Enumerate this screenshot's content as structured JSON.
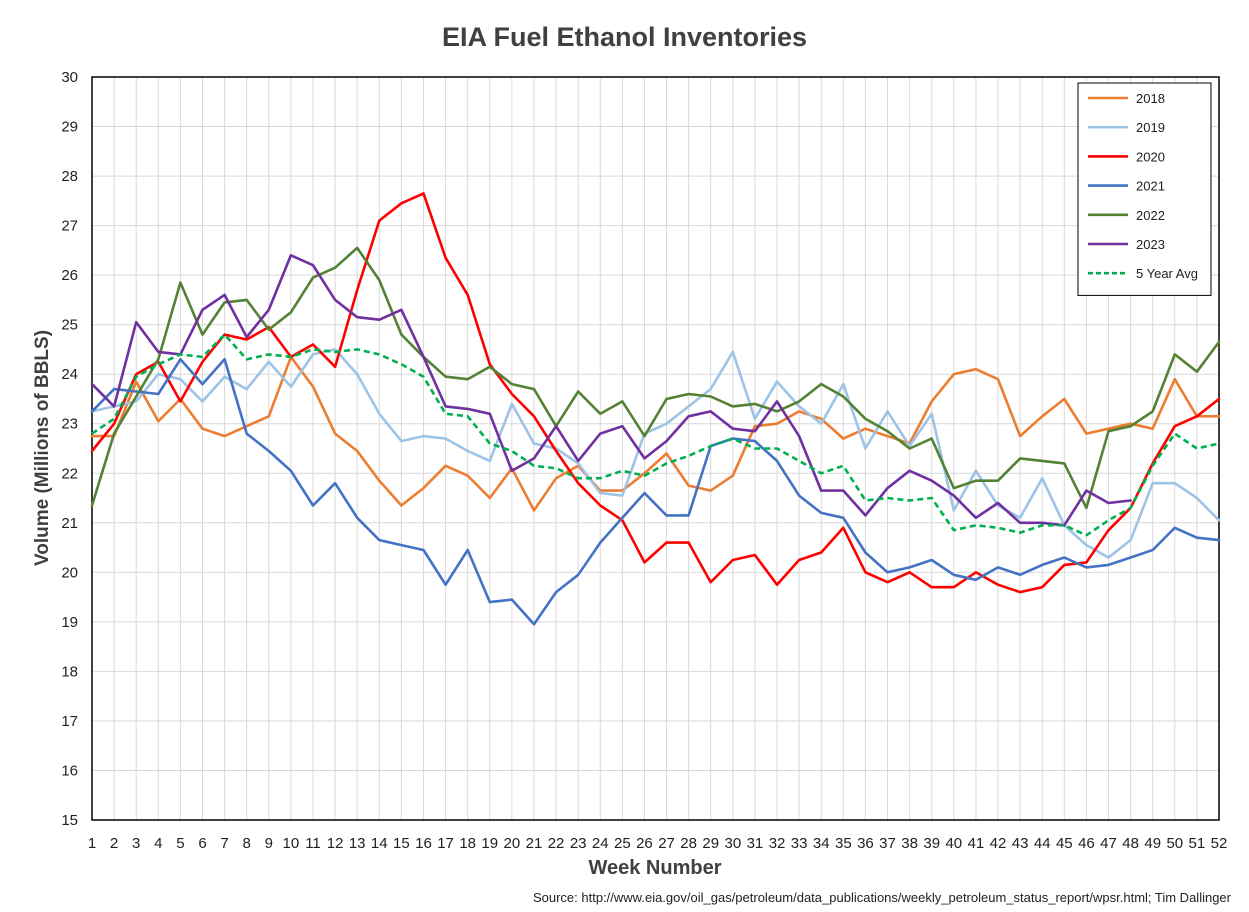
{
  "chart_data": {
    "type": "line",
    "title": "EIA Fuel Ethanol Inventories",
    "xlabel": "Week Number",
    "ylabel": "Volume (Millions of BBLS)",
    "source": "Source: http://www.eia.gov/oil_gas/petroleum/data_publications/weekly_petroleum_status_report/wpsr.html; Tim Dallinger",
    "ylim": [
      15,
      30
    ],
    "yticks": [
      15,
      16,
      17,
      18,
      19,
      20,
      21,
      22,
      23,
      24,
      25,
      26,
      27,
      28,
      29,
      30
    ],
    "x": [
      1,
      2,
      3,
      4,
      5,
      6,
      7,
      8,
      9,
      10,
      11,
      12,
      13,
      14,
      15,
      16,
      17,
      18,
      19,
      20,
      21,
      22,
      23,
      24,
      25,
      26,
      27,
      28,
      29,
      30,
      31,
      32,
      33,
      34,
      35,
      36,
      37,
      38,
      39,
      40,
      41,
      42,
      43,
      44,
      45,
      46,
      47,
      48,
      49,
      50,
      51,
      52
    ],
    "grid": true,
    "legend_position": "top-right",
    "series": [
      {
        "name": "2018",
        "color": "#ED7D31",
        "dash": false,
        "values": [
          22.75,
          22.75,
          23.85,
          23.05,
          23.5,
          22.9,
          22.75,
          22.95,
          23.15,
          24.35,
          23.75,
          22.8,
          22.45,
          21.85,
          21.35,
          21.7,
          22.15,
          21.95,
          21.5,
          22.1,
          21.25,
          21.9,
          22.15,
          21.65,
          21.65,
          22.0,
          22.4,
          21.75,
          21.65,
          21.95,
          22.95,
          23.0,
          23.25,
          23.1,
          22.7,
          22.9,
          22.75,
          22.6,
          23.45,
          24.0,
          24.1,
          23.9,
          22.75,
          23.15,
          23.5,
          22.8,
          22.9,
          23.0,
          22.9,
          23.9,
          23.15,
          23.15
        ]
      },
      {
        "name": "2019",
        "color": "#9DC3E6",
        "dash": false,
        "values": [
          23.25,
          23.35,
          23.45,
          24.0,
          23.9,
          23.45,
          23.95,
          23.7,
          24.25,
          23.75,
          24.4,
          24.5,
          24.0,
          23.2,
          22.65,
          22.75,
          22.7,
          22.45,
          22.25,
          23.4,
          22.6,
          22.5,
          22.2,
          21.6,
          21.55,
          22.8,
          23.0,
          23.35,
          23.7,
          24.45,
          23.1,
          23.85,
          23.35,
          23.0,
          23.8,
          22.5,
          23.25,
          22.55,
          23.2,
          21.25,
          22.05,
          21.35,
          21.1,
          21.9,
          20.95,
          20.55,
          20.3,
          20.65,
          21.8,
          21.8,
          21.5,
          21.05
        ]
      },
      {
        "name": "2020",
        "color": "#FF0000",
        "dash": false,
        "values": [
          22.45,
          23.0,
          24.0,
          24.25,
          23.45,
          24.25,
          24.8,
          24.7,
          24.95,
          24.35,
          24.6,
          24.15,
          25.7,
          27.1,
          27.45,
          27.65,
          26.35,
          25.6,
          24.2,
          23.6,
          23.15,
          22.45,
          21.8,
          21.35,
          21.05,
          20.2,
          20.6,
          20.6,
          19.8,
          20.25,
          20.35,
          19.75,
          20.25,
          20.4,
          20.9,
          20.0,
          19.8,
          20.0,
          19.7,
          19.7,
          20.0,
          19.75,
          19.6,
          19.7,
          20.15,
          20.2,
          20.85,
          21.3,
          22.2,
          22.95,
          23.15,
          23.5
        ]
      },
      {
        "name": "2021",
        "color": "#4472C4",
        "dash": false,
        "values": [
          23.25,
          23.7,
          23.65,
          23.6,
          24.3,
          23.8,
          24.3,
          22.8,
          22.45,
          22.05,
          21.35,
          21.8,
          21.1,
          20.65,
          20.55,
          20.45,
          19.75,
          20.45,
          19.4,
          19.45,
          18.95,
          19.6,
          19.95,
          20.6,
          21.1,
          21.6,
          21.15,
          21.15,
          22.55,
          22.7,
          22.65,
          22.25,
          21.55,
          21.2,
          21.1,
          20.4,
          20.0,
          20.1,
          20.25,
          19.95,
          19.85,
          20.1,
          19.95,
          20.15,
          20.3,
          20.1,
          20.15,
          20.3,
          20.45,
          20.9,
          20.7,
          20.65
        ]
      },
      {
        "name": "2022",
        "color": "#548235",
        "dash": false,
        "values": [
          21.35,
          22.8,
          23.55,
          24.3,
          25.85,
          24.8,
          25.45,
          25.5,
          24.9,
          25.25,
          25.95,
          26.15,
          26.55,
          25.9,
          24.8,
          24.35,
          23.95,
          23.9,
          24.15,
          23.8,
          23.7,
          22.95,
          23.65,
          23.2,
          23.45,
          22.75,
          23.5,
          23.6,
          23.55,
          23.35,
          23.4,
          23.25,
          23.45,
          23.8,
          23.55,
          23.1,
          22.85,
          22.5,
          22.7,
          21.7,
          21.85,
          21.85,
          22.3,
          22.25,
          22.2,
          21.3,
          22.85,
          22.95,
          23.25,
          24.4,
          24.05,
          24.65
        ]
      },
      {
        "name": "2023",
        "color": "#7030A0",
        "dash": false,
        "values": [
          23.8,
          23.35,
          25.05,
          24.45,
          24.4,
          25.3,
          25.6,
          24.75,
          25.3,
          26.4,
          26.2,
          25.5,
          25.15,
          25.1,
          25.3,
          24.35,
          23.35,
          23.3,
          23.2,
          22.05,
          22.3,
          22.95,
          22.25,
          22.8,
          22.95,
          22.3,
          22.65,
          23.15,
          23.25,
          22.9,
          22.85,
          23.45,
          22.75,
          21.65,
          21.65,
          21.15,
          21.7,
          22.05,
          21.85,
          21.55,
          21.1,
          21.4,
          21.0,
          21.0,
          20.95,
          21.65,
          21.4,
          21.45,
          null,
          null,
          null,
          null
        ]
      },
      {
        "name": "5 Year Avg",
        "color": "#00B050",
        "dash": true,
        "values": [
          22.8,
          23.1,
          23.95,
          24.2,
          24.4,
          24.35,
          24.8,
          24.3,
          24.4,
          24.35,
          24.5,
          24.45,
          24.5,
          24.4,
          24.2,
          23.95,
          23.2,
          23.15,
          22.6,
          22.45,
          22.15,
          22.1,
          21.9,
          21.9,
          22.05,
          21.95,
          22.2,
          22.35,
          22.55,
          22.7,
          22.5,
          22.5,
          22.25,
          22.0,
          22.15,
          21.45,
          21.5,
          21.45,
          21.5,
          20.85,
          20.95,
          20.9,
          20.8,
          20.95,
          20.95,
          20.75,
          21.05,
          21.3,
          22.15,
          22.8,
          22.5,
          22.6
        ]
      }
    ]
  }
}
